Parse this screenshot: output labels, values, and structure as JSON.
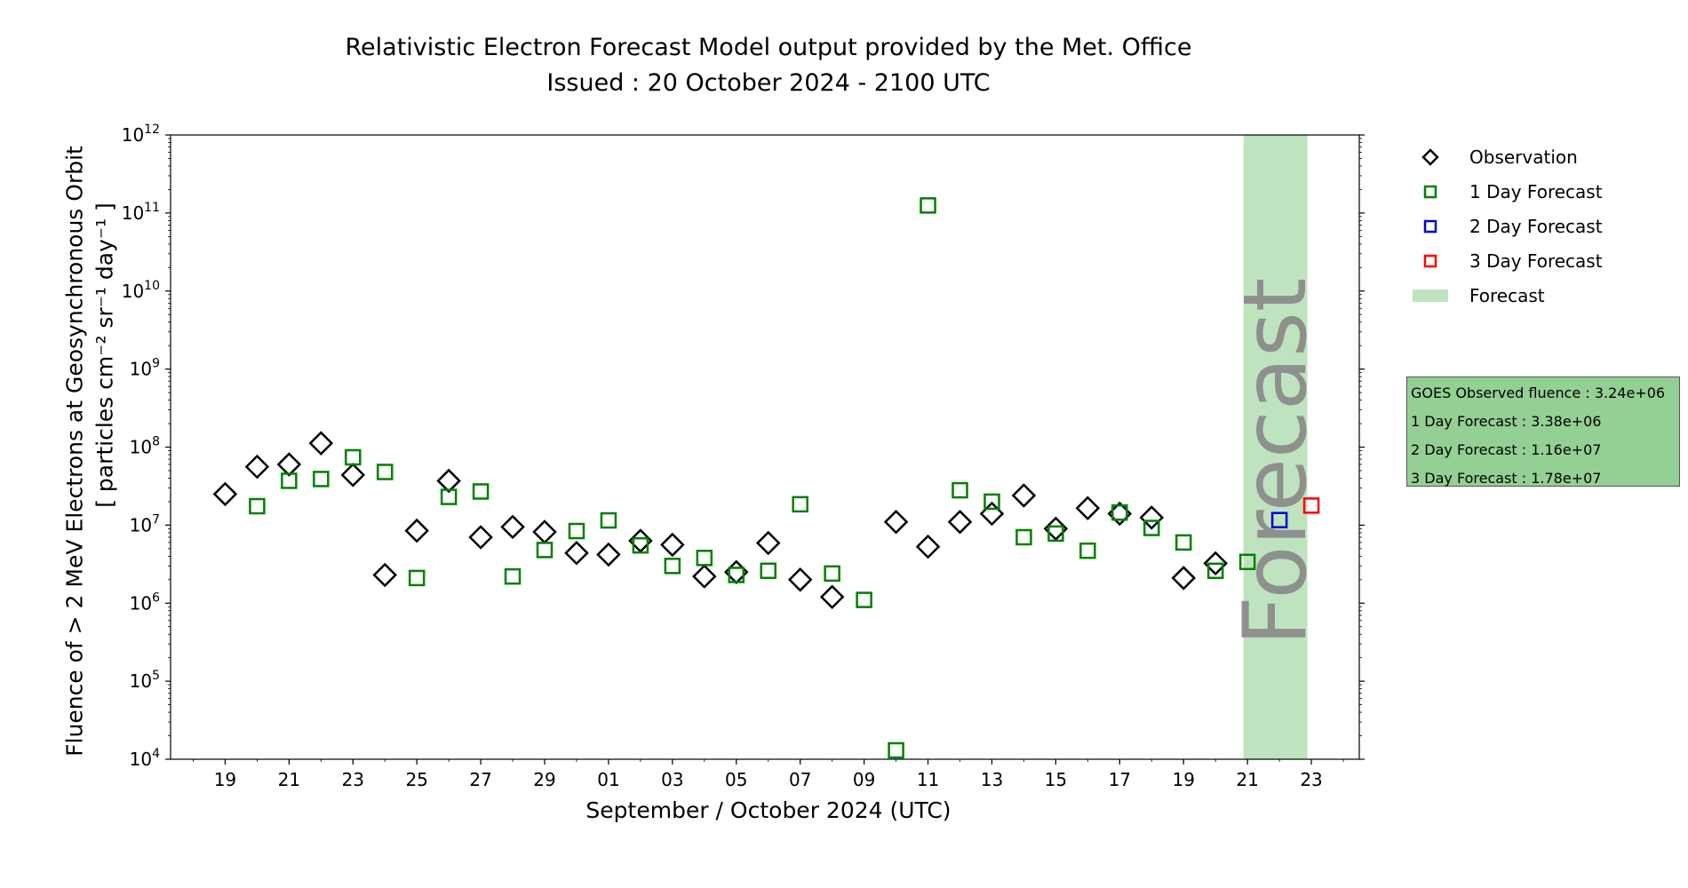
{
  "chart_data": {
    "type": "scatter",
    "title": "Relativistic Electron Forecast Model output provided by the Met. Office",
    "subtitle": "Issued : 20 October 2024 - 2100 UTC",
    "ylabel_line1": "Fluence of > 2 MeV Electrons at Geosynchronous Orbit",
    "ylabel_line2": "[ particles cm⁻² sr⁻¹ day⁻¹ ]",
    "xlabel": "September / October 2024 (UTC)",
    "yscale": "log",
    "ylim": [
      10000,
      1000000000000
    ],
    "y_ticks": [
      {
        "value": 10000,
        "base": "10",
        "exp": "4"
      },
      {
        "value": 100000,
        "base": "10",
        "exp": "5"
      },
      {
        "value": 1000000,
        "base": "10",
        "exp": "6"
      },
      {
        "value": 10000000,
        "base": "10",
        "exp": "7"
      },
      {
        "value": 100000000,
        "base": "10",
        "exp": "8"
      },
      {
        "value": 1000000000,
        "base": "10",
        "exp": "9"
      },
      {
        "value": 10000000000,
        "base": "10",
        "exp": "10"
      },
      {
        "value": 100000000000,
        "base": "10",
        "exp": "11"
      },
      {
        "value": 1000000000000,
        "base": "10",
        "exp": "12"
      }
    ],
    "x_ticks": [
      {
        "date": "2024-09-19",
        "label": "19"
      },
      {
        "date": "2024-09-21",
        "label": "21"
      },
      {
        "date": "2024-09-23",
        "label": "23"
      },
      {
        "date": "2024-09-25",
        "label": "25"
      },
      {
        "date": "2024-09-27",
        "label": "27"
      },
      {
        "date": "2024-09-29",
        "label": "29"
      },
      {
        "date": "2024-10-01",
        "label": "01"
      },
      {
        "date": "2024-10-03",
        "label": "03"
      },
      {
        "date": "2024-10-05",
        "label": "05"
      },
      {
        "date": "2024-10-07",
        "label": "07"
      },
      {
        "date": "2024-10-09",
        "label": "09"
      },
      {
        "date": "2024-10-11",
        "label": "11"
      },
      {
        "date": "2024-10-13",
        "label": "13"
      },
      {
        "date": "2024-10-15",
        "label": "15"
      },
      {
        "date": "2024-10-17",
        "label": "17"
      },
      {
        "date": "2024-10-19",
        "label": "19"
      },
      {
        "date": "2024-10-21",
        "label": "21"
      },
      {
        "date": "2024-10-23",
        "label": "23"
      }
    ],
    "xlim": [
      "2024-09-17T07:00",
      "2024-10-24T12:00"
    ],
    "forecast_region": {
      "start": "2024-10-20T21:00",
      "end": "2024-10-22T21:00",
      "label": "Forecast",
      "color": "#bfe3bf"
    },
    "series": [
      {
        "name": "Observation",
        "marker": "diamond",
        "color": "#000000",
        "points": [
          {
            "x": "2024-09-19",
            "y": 25000000
          },
          {
            "x": "2024-09-20",
            "y": 56000000
          },
          {
            "x": "2024-09-21",
            "y": 60000000
          },
          {
            "x": "2024-09-22",
            "y": 112000000
          },
          {
            "x": "2024-09-23",
            "y": 44000000
          },
          {
            "x": "2024-09-24",
            "y": 2300000
          },
          {
            "x": "2024-09-25",
            "y": 8500000
          },
          {
            "x": "2024-09-26",
            "y": 37000000
          },
          {
            "x": "2024-09-27",
            "y": 7000000
          },
          {
            "x": "2024-09-28",
            "y": 9500000
          },
          {
            "x": "2024-09-29",
            "y": 8200000
          },
          {
            "x": "2024-09-30",
            "y": 4400000
          },
          {
            "x": "2024-10-01",
            "y": 4200000
          },
          {
            "x": "2024-10-02",
            "y": 6300000
          },
          {
            "x": "2024-10-03",
            "y": 5600000
          },
          {
            "x": "2024-10-04",
            "y": 2200000
          },
          {
            "x": "2024-10-05",
            "y": 2500000
          },
          {
            "x": "2024-10-06",
            "y": 5900000
          },
          {
            "x": "2024-10-07",
            "y": 2000000
          },
          {
            "x": "2024-10-08",
            "y": 1200000
          },
          {
            "x": "2024-10-10",
            "y": 11000000
          },
          {
            "x": "2024-10-11",
            "y": 5300000
          },
          {
            "x": "2024-10-12",
            "y": 11000000
          },
          {
            "x": "2024-10-13",
            "y": 14000000
          },
          {
            "x": "2024-10-14",
            "y": 24000000
          },
          {
            "x": "2024-10-15",
            "y": 9000000
          },
          {
            "x": "2024-10-16",
            "y": 16500000
          },
          {
            "x": "2024-10-17",
            "y": 14000000
          },
          {
            "x": "2024-10-18",
            "y": 12500000
          },
          {
            "x": "2024-10-19",
            "y": 2100000
          },
          {
            "x": "2024-10-20",
            "y": 3240000
          }
        ]
      },
      {
        "name": "1 Day Forecast",
        "marker": "square",
        "color": "#008000",
        "points": [
          {
            "x": "2024-09-20",
            "y": 17500000
          },
          {
            "x": "2024-09-21",
            "y": 37000000
          },
          {
            "x": "2024-09-22",
            "y": 39000000
          },
          {
            "x": "2024-09-23",
            "y": 74000000
          },
          {
            "x": "2024-09-24",
            "y": 48000000
          },
          {
            "x": "2024-09-25",
            "y": 2100000
          },
          {
            "x": "2024-09-26",
            "y": 23000000
          },
          {
            "x": "2024-09-27",
            "y": 27000000
          },
          {
            "x": "2024-09-28",
            "y": 2200000
          },
          {
            "x": "2024-09-29",
            "y": 4800000
          },
          {
            "x": "2024-09-30",
            "y": 8400000
          },
          {
            "x": "2024-10-01",
            "y": 11500000
          },
          {
            "x": "2024-10-02",
            "y": 5500000
          },
          {
            "x": "2024-10-03",
            "y": 3000000
          },
          {
            "x": "2024-10-04",
            "y": 3800000
          },
          {
            "x": "2024-10-05",
            "y": 2300000
          },
          {
            "x": "2024-10-06",
            "y": 2600000
          },
          {
            "x": "2024-10-07",
            "y": 18500000
          },
          {
            "x": "2024-10-08",
            "y": 2400000
          },
          {
            "x": "2024-10-09",
            "y": 1100000
          },
          {
            "x": "2024-10-10",
            "y": 13000
          },
          {
            "x": "2024-10-11",
            "y": 125000000000
          },
          {
            "x": "2024-10-12",
            "y": 28000000
          },
          {
            "x": "2024-10-13",
            "y": 20000000
          },
          {
            "x": "2024-10-14",
            "y": 7000000
          },
          {
            "x": "2024-10-15",
            "y": 7800000
          },
          {
            "x": "2024-10-16",
            "y": 4700000
          },
          {
            "x": "2024-10-17",
            "y": 14500000
          },
          {
            "x": "2024-10-18",
            "y": 9200000
          },
          {
            "x": "2024-10-19",
            "y": 6000000
          },
          {
            "x": "2024-10-20",
            "y": 2600000
          },
          {
            "x": "2024-10-21",
            "y": 3380000
          }
        ]
      },
      {
        "name": "2 Day Forecast",
        "marker": "square",
        "color": "#0000cc",
        "points": [
          {
            "x": "2024-10-22",
            "y": 11600000
          }
        ]
      },
      {
        "name": "3 Day Forecast",
        "marker": "square",
        "color": "#ff0000",
        "points": [
          {
            "x": "2024-10-23",
            "y": 17800000
          }
        ]
      }
    ],
    "legend": {
      "position": "right",
      "items": [
        {
          "label": "Observation",
          "marker": "diamond",
          "color": "#000000"
        },
        {
          "label": "1 Day Forecast",
          "marker": "square",
          "color": "#008000"
        },
        {
          "label": "2 Day Forecast",
          "marker": "square",
          "color": "#0000cc"
        },
        {
          "label": "3 Day Forecast",
          "marker": "square",
          "color": "#ff0000"
        },
        {
          "label": "Forecast",
          "marker": "patch",
          "color": "#bfe3bf"
        }
      ]
    },
    "info_box": {
      "background": "#94cf94",
      "lines": [
        "GOES Observed fluence : 3.24e+06",
        "1 Day Forecast : 3.38e+06",
        "2 Day Forecast : 1.16e+07",
        "3 Day Forecast : 1.78e+07"
      ]
    }
  }
}
